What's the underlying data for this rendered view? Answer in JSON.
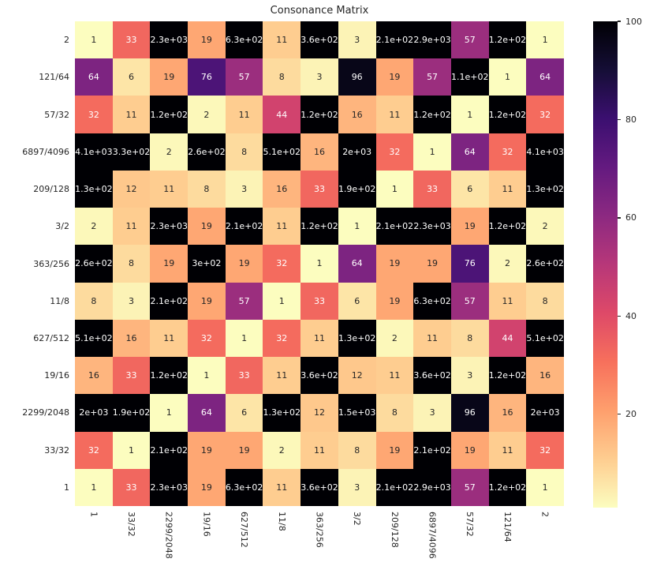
{
  "figure": {
    "title": "Consonance Matrix"
  },
  "colors": {
    "background": "#ffffff",
    "text": "#262626",
    "annot_on_dark": "#ffffff",
    "annot_on_light": "#262626"
  },
  "chart_data": {
    "type": "heatmap",
    "title": "Consonance Matrix",
    "colormap": "magma_r",
    "vmin": 1,
    "vmax": 100,
    "row_labels": [
      "2",
      "121/64",
      "57/32",
      "6897/4096",
      "209/128",
      "3/2",
      "363/256",
      "11/8",
      "627/512",
      "19/16",
      "2299/2048",
      "33/32",
      "1"
    ],
    "col_labels": [
      "1",
      "33/32",
      "2299/2048",
      "19/16",
      "627/512",
      "11/8",
      "363/256",
      "3/2",
      "209/128",
      "6897/4096",
      "57/32",
      "121/64",
      "2"
    ],
    "values": [
      [
        1,
        33,
        2300,
        19,
        630,
        11,
        360,
        3,
        210,
        2900,
        57,
        120,
        1
      ],
      [
        64,
        6,
        19,
        76,
        57,
        8,
        3,
        96,
        19,
        57,
        110,
        1,
        64
      ],
      [
        32,
        11,
        120,
        2,
        11,
        44,
        120,
        16,
        11,
        120,
        1,
        120,
        32
      ],
      [
        4100,
        330,
        2,
        260,
        8,
        510,
        16,
        2000,
        32,
        1,
        64,
        32,
        4100
      ],
      [
        130,
        12,
        11,
        8,
        3,
        16,
        33,
        190,
        1,
        33,
        6,
        11,
        130
      ],
      [
        2,
        11,
        2300,
        19,
        210,
        11,
        120,
        1,
        210,
        2300,
        19,
        120,
        2
      ],
      [
        260,
        8,
        19,
        300,
        19,
        32,
        1,
        64,
        19,
        19,
        76,
        2,
        260
      ],
      [
        8,
        3,
        210,
        19,
        57,
        1,
        33,
        6,
        19,
        630,
        57,
        11,
        8
      ],
      [
        510,
        16,
        11,
        32,
        1,
        32,
        11,
        130,
        2,
        11,
        8,
        44,
        510
      ],
      [
        16,
        33,
        120,
        1,
        33,
        11,
        360,
        12,
        11,
        360,
        3,
        120,
        16
      ],
      [
        2000,
        190,
        1,
        64,
        6,
        130,
        12,
        1500,
        8,
        3,
        96,
        16,
        2000
      ],
      [
        32,
        1,
        210,
        19,
        19,
        2,
        11,
        8,
        19,
        210,
        19,
        11,
        32
      ],
      [
        1,
        33,
        2300,
        19,
        630,
        11,
        360,
        3,
        210,
        2900,
        57,
        120,
        1
      ]
    ],
    "annotations": [
      [
        "1",
        "33",
        "2.3e+03",
        "19",
        "6.3e+02",
        "11",
        "3.6e+02",
        "3",
        "2.1e+02",
        "2.9e+03",
        "57",
        "1.2e+02",
        "1"
      ],
      [
        "64",
        "6",
        "19",
        "76",
        "57",
        "8",
        "3",
        "96",
        "19",
        "57",
        "1.1e+02",
        "1",
        "64"
      ],
      [
        "32",
        "11",
        "1.2e+02",
        "2",
        "11",
        "44",
        "1.2e+02",
        "16",
        "11",
        "1.2e+02",
        "1",
        "1.2e+02",
        "32"
      ],
      [
        "4.1e+03",
        "3.3e+02",
        "2",
        "2.6e+02",
        "8",
        "5.1e+02",
        "16",
        "2e+03",
        "32",
        "1",
        "64",
        "32",
        "4.1e+03"
      ],
      [
        "1.3e+02",
        "12",
        "11",
        "8",
        "3",
        "16",
        "33",
        "1.9e+02",
        "1",
        "33",
        "6",
        "11",
        "1.3e+02"
      ],
      [
        "2",
        "11",
        "2.3e+03",
        "19",
        "2.1e+02",
        "11",
        "1.2e+02",
        "1",
        "2.1e+02",
        "2.3e+03",
        "19",
        "1.2e+02",
        "2"
      ],
      [
        "2.6e+02",
        "8",
        "19",
        "3e+02",
        "19",
        "32",
        "1",
        "64",
        "19",
        "19",
        "76",
        "2",
        "2.6e+02"
      ],
      [
        "8",
        "3",
        "2.1e+02",
        "19",
        "57",
        "1",
        "33",
        "6",
        "19",
        "6.3e+02",
        "57",
        "11",
        "8"
      ],
      [
        "5.1e+02",
        "16",
        "11",
        "32",
        "1",
        "32",
        "11",
        "1.3e+02",
        "2",
        "11",
        "8",
        "44",
        "5.1e+02"
      ],
      [
        "16",
        "33",
        "1.2e+02",
        "1",
        "33",
        "11",
        "3.6e+02",
        "12",
        "11",
        "3.6e+02",
        "3",
        "1.2e+02",
        "16"
      ],
      [
        "2e+03",
        "1.9e+02",
        "1",
        "64",
        "6",
        "1.3e+02",
        "12",
        "1.5e+03",
        "8",
        "3",
        "96",
        "16",
        "2e+03"
      ],
      [
        "32",
        "1",
        "2.1e+02",
        "19",
        "19",
        "2",
        "11",
        "8",
        "19",
        "2.1e+02",
        "19",
        "11",
        "32"
      ],
      [
        "1",
        "33",
        "2.3e+03",
        "19",
        "6.3e+02",
        "11",
        "3.6e+02",
        "3",
        "2.1e+02",
        "2.9e+03",
        "57",
        "1.2e+02",
        "1"
      ]
    ],
    "colorbar": {
      "tick_labels": [
        "20",
        "40",
        "60",
        "80",
        "100"
      ],
      "tick_values": [
        20,
        40,
        60,
        80,
        100
      ]
    }
  }
}
